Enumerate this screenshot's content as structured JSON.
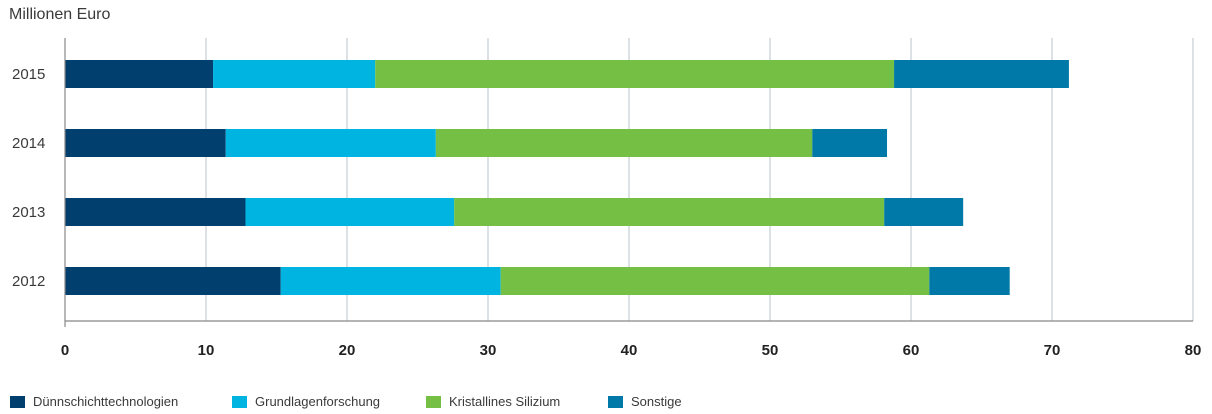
{
  "chart_data": {
    "type": "bar",
    "orientation": "horizontal",
    "stacked": true,
    "unit_label": "Millionen Euro",
    "categories": [
      "2015",
      "2014",
      "2013",
      "2012"
    ],
    "series": [
      {
        "name": "Dünnschichttechnologien",
        "color": "#003f6e",
        "values": [
          10.5,
          11.4,
          12.8,
          15.3
        ]
      },
      {
        "name": "Grundlagenforschung",
        "color": "#00b4e1",
        "values": [
          11.5,
          14.9,
          14.8,
          15.6
        ]
      },
      {
        "name": "Kristallines Silizium",
        "color": "#74bf44",
        "values": [
          36.8,
          26.7,
          30.5,
          30.4
        ]
      },
      {
        "name": "Sonstige",
        "color": "#0078a8",
        "values": [
          12.4,
          5.3,
          5.6,
          5.7
        ]
      }
    ],
    "xlim": [
      0,
      80
    ],
    "xticks": [
      "0",
      "10",
      "20",
      "30",
      "40",
      "50",
      "60",
      "70",
      "80"
    ],
    "grid": true,
    "legend_position": "bottom"
  }
}
